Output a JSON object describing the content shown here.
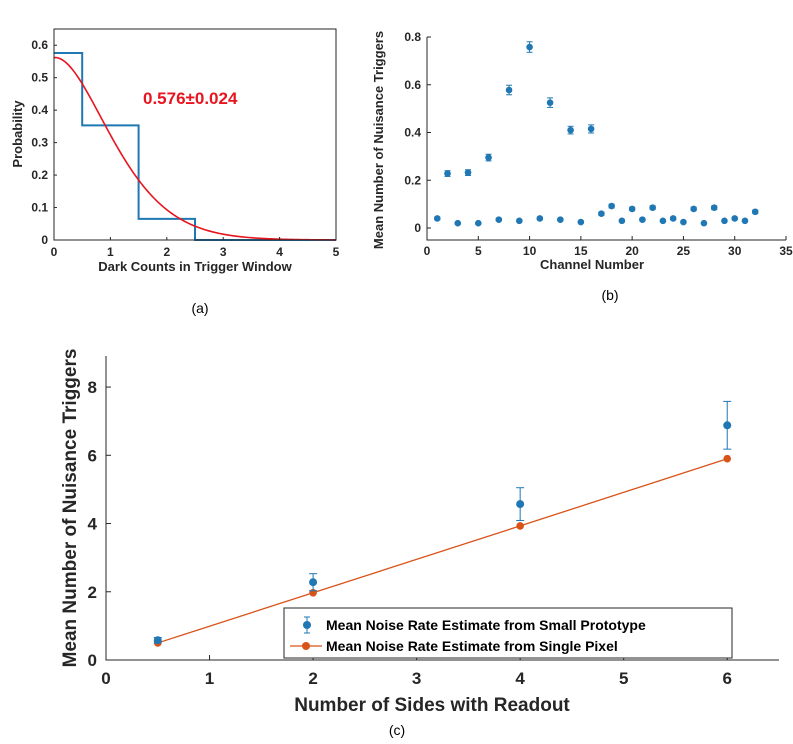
{
  "chart_data": [
    {
      "type": "line",
      "panel_label": "(a)",
      "xlabel": "Dark Counts in Trigger Window",
      "ylabel": "Probability",
      "xlim": [
        0,
        5
      ],
      "ylim": [
        0,
        0.65
      ],
      "xticks": [
        "0",
        "1",
        "2",
        "3",
        "4",
        "5"
      ],
      "yticks": [
        "0",
        "0.1",
        "0.2",
        "0.3",
        "0.4",
        "0.5",
        "0.6"
      ],
      "annotation": "0.576±0.024",
      "annotation_color": "#e8141e",
      "series": [
        {
          "kind": "step-histogram",
          "color": "#1f77b4",
          "x": [
            0,
            0.5,
            1.5,
            2.5,
            3.5,
            4.5,
            5
          ],
          "values": [
            0.576,
            0.353,
            0.065,
            0.0,
            0.0,
            0.0
          ]
        },
        {
          "kind": "poisson-curve",
          "color": "#e8141e",
          "mean": 0.576
        }
      ],
      "grid": false,
      "legend": "none"
    },
    {
      "type": "scatter",
      "panel_label": "(b)",
      "xlabel": "Channel Number",
      "ylabel": "Mean Number of Nuisance Triggers",
      "xlim": [
        0,
        35
      ],
      "ylim": [
        0,
        0.8
      ],
      "xticks": [
        "0",
        "5",
        "10",
        "15",
        "20",
        "25",
        "30",
        "35"
      ],
      "yticks": [
        "0",
        "0.2",
        "0.4",
        "0.6",
        "0.8"
      ],
      "marker_color": "#1f77b4",
      "series": [
        {
          "x": [
            1,
            2,
            3,
            4,
            5,
            6,
            7,
            8,
            9,
            10,
            11,
            12,
            13,
            14,
            15,
            16,
            17,
            18,
            19,
            20,
            21,
            22,
            23,
            24,
            25,
            26,
            27,
            28,
            29,
            30,
            31,
            32
          ],
          "values": [
            0.04,
            0.228,
            0.02,
            0.232,
            0.02,
            0.295,
            0.035,
            0.578,
            0.03,
            0.758,
            0.04,
            0.525,
            0.035,
            0.41,
            0.025,
            0.415,
            0.06,
            0.092,
            0.03,
            0.08,
            0.035,
            0.085,
            0.03,
            0.04,
            0.025,
            0.08,
            0.02,
            0.085,
            0.03,
            0.04,
            0.03,
            0.068
          ],
          "errors": [
            0.005,
            0.012,
            0.003,
            0.012,
            0.003,
            0.014,
            0.005,
            0.02,
            0.004,
            0.022,
            0.005,
            0.02,
            0.005,
            0.016,
            0.004,
            0.017,
            0.007,
            0.008,
            0.004,
            0.007,
            0.005,
            0.008,
            0.004,
            0.005,
            0.004,
            0.007,
            0.003,
            0.008,
            0.004,
            0.005,
            0.004,
            0.007
          ]
        }
      ],
      "grid": false,
      "legend": "none"
    },
    {
      "type": "line",
      "panel_label": "(c)",
      "xlabel": "Number of Sides with Readout",
      "ylabel": "Mean Number of Nuisance Triggers",
      "xlim": [
        0,
        6.5
      ],
      "ylim": [
        0,
        8.5
      ],
      "xticks": [
        "0",
        "1",
        "2",
        "3",
        "4",
        "5",
        "6"
      ],
      "yticks": [
        "0",
        "2",
        "4",
        "6",
        "8"
      ],
      "series": [
        {
          "name": "Mean Noise Rate Estimate from Small Prototype",
          "color": "#1f77b4",
          "style": "markers-with-errorbars",
          "x": [
            0.5,
            2,
            4,
            6
          ],
          "values": [
            0.58,
            2.28,
            4.57,
            6.88
          ],
          "errors": [
            0.08,
            0.25,
            0.48,
            0.7
          ]
        },
        {
          "name": "Mean Noise Rate Estimate from Single Pixel",
          "color": "#d95319",
          "style": "line-with-markers",
          "x": [
            0.5,
            2,
            4,
            6
          ],
          "values": [
            0.5,
            1.97,
            3.93,
            5.9
          ]
        }
      ],
      "grid": false,
      "legend": "bottom-right"
    }
  ]
}
